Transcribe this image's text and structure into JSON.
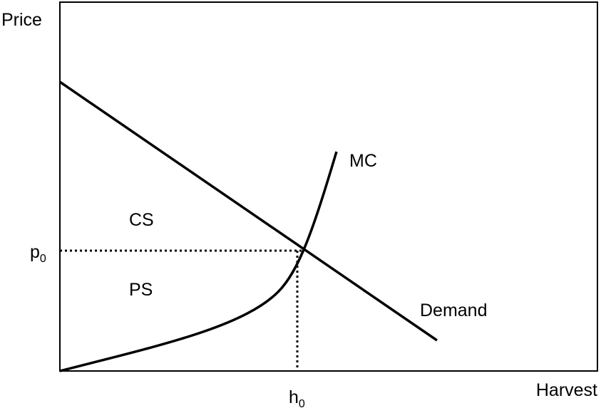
{
  "axes": {
    "y_label": "Price",
    "x_label": "Harvest"
  },
  "price_level": {
    "base": "p",
    "sub": "0"
  },
  "harvest_level": {
    "base": "h",
    "sub": "0"
  },
  "curves": {
    "supply": "MC",
    "demand": "Demand"
  },
  "areas": {
    "consumer_surplus": "CS",
    "producer_surplus": "PS"
  }
}
